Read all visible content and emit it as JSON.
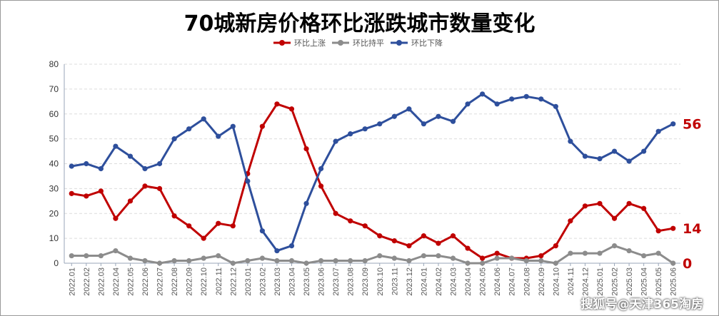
{
  "chart_data": {
    "type": "line",
    "title": "70城新房价格环比涨跌城市数量变化",
    "xlabel": "",
    "ylabel": "",
    "ylim": [
      0,
      80
    ],
    "yticks": [
      0,
      10,
      20,
      30,
      40,
      50,
      60,
      70,
      80
    ],
    "grid": true,
    "legend_position": "top-center",
    "categories": [
      "2022.01",
      "2022.02",
      "2022.03",
      "2022.04",
      "2022.05",
      "2022.06",
      "2022.07",
      "2022.08",
      "2022.09",
      "2022.10",
      "2022.11",
      "2022.12",
      "2023.01",
      "2023.02",
      "2023.03",
      "2023.04",
      "2023.05",
      "2023.06",
      "2023.07",
      "2023.08",
      "2023.09",
      "2023.10",
      "2023.11",
      "2023.12",
      "2024.01",
      "2024.02",
      "2024.03",
      "2024.04",
      "2024.05",
      "2024.06",
      "2024.07",
      "2024.08",
      "2024.09",
      "2024.10",
      "2024.11",
      "2024.12",
      "2025.01",
      "2025.02",
      "2025.03",
      "2025.04",
      "2025.05",
      "2025.06"
    ],
    "series": [
      {
        "name": "环比上涨",
        "color": "#c00000",
        "values": [
          28,
          27,
          29,
          18,
          25,
          31,
          30,
          19,
          15,
          10,
          16,
          15,
          36,
          55,
          64,
          62,
          46,
          31,
          20,
          17,
          15,
          11,
          9,
          7,
          11,
          8,
          11,
          6,
          2,
          4,
          2,
          2,
          3,
          7,
          17,
          23,
          24,
          18,
          24,
          22,
          13,
          14
        ]
      },
      {
        "name": "环比持平",
        "color": "#8c8c8c",
        "values": [
          3,
          3,
          3,
          5,
          2,
          1,
          0,
          1,
          1,
          2,
          3,
          0,
          1,
          2,
          1,
          1,
          0,
          1,
          1,
          1,
          1,
          3,
          2,
          1,
          3,
          3,
          2,
          0,
          0,
          2,
          2,
          1,
          1,
          0,
          4,
          4,
          4,
          7,
          5,
          3,
          4,
          0
        ]
      },
      {
        "name": "环比下降",
        "color": "#2e4f9c",
        "values": [
          39,
          40,
          38,
          47,
          43,
          38,
          40,
          50,
          54,
          58,
          51,
          55,
          33,
          13,
          5,
          7,
          24,
          38,
          49,
          52,
          54,
          56,
          59,
          62,
          56,
          59,
          57,
          64,
          68,
          64,
          66,
          67,
          66,
          63,
          49,
          43,
          42,
          45,
          41,
          45,
          53,
          56
        ]
      }
    ],
    "end_labels": [
      {
        "text": "56",
        "color": "#c00000"
      },
      {
        "text": "14",
        "color": "#c00000"
      },
      {
        "text": "0",
        "color": "#c00000"
      }
    ]
  },
  "watermark": "搜狐号@天津365淘房"
}
